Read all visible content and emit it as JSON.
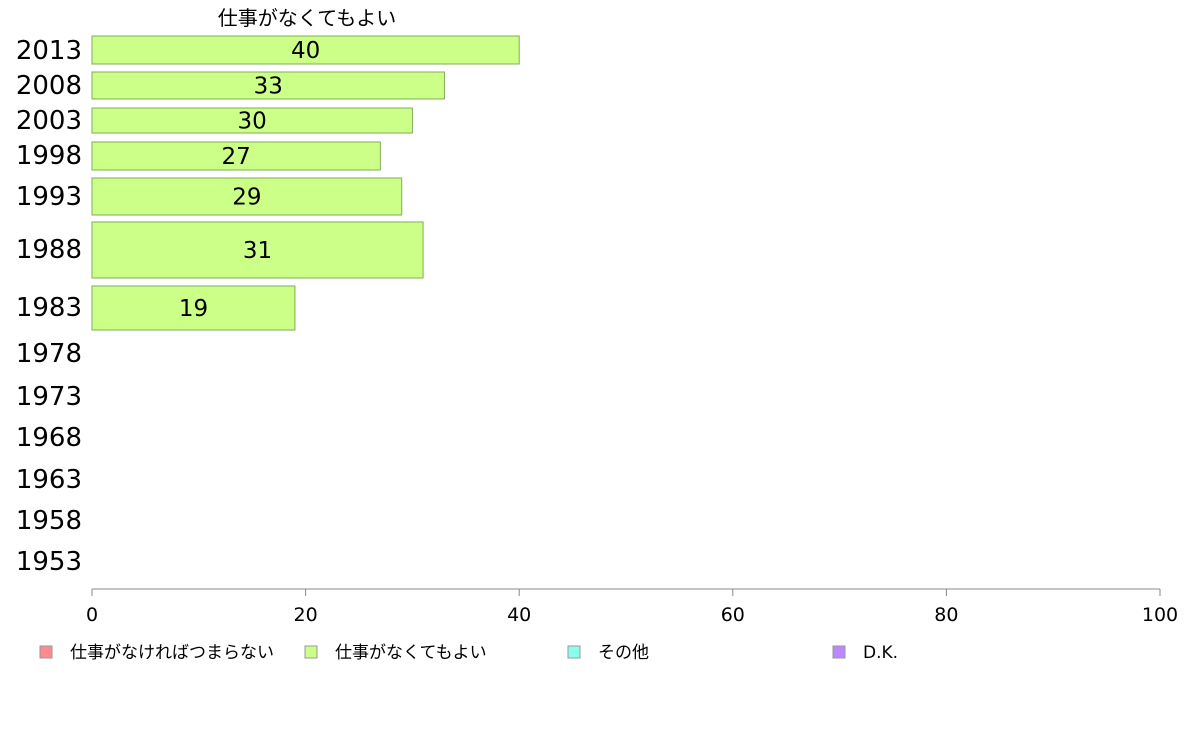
{
  "chart_data": {
    "type": "bar",
    "orientation": "horizontal",
    "series_title": "仕事がなくてもよい",
    "categories": [
      "2013",
      "2008",
      "2003",
      "1998",
      "1993",
      "1988",
      "1983",
      "1978",
      "1973",
      "1968",
      "1963",
      "1958",
      "1953"
    ],
    "series": [
      {
        "name": "仕事がなくてもよい",
        "values": [
          40,
          33,
          30,
          27,
          29,
          31,
          19,
          null,
          null,
          null,
          null,
          null,
          null
        ]
      }
    ],
    "value_labels": [
      "40",
      "33",
      "30",
      "27",
      "29",
      "31",
      "19",
      "",
      "",
      "",
      "",
      "",
      ""
    ],
    "xlim": [
      0,
      100
    ],
    "xticks": [
      "0",
      "20",
      "40",
      "60",
      "80",
      "100"
    ],
    "legend_position": "bottom",
    "legend": [
      {
        "label": "仕事がなければつまらない",
        "color": "#ff8c8c"
      },
      {
        "label": "仕事がなくてもよい",
        "color": "#ccff88"
      },
      {
        "label": "その他",
        "color": "#88ffee"
      },
      {
        "label": "D.K.",
        "color": "#bb88ff"
      }
    ],
    "bar_color": "#ccff88"
  }
}
